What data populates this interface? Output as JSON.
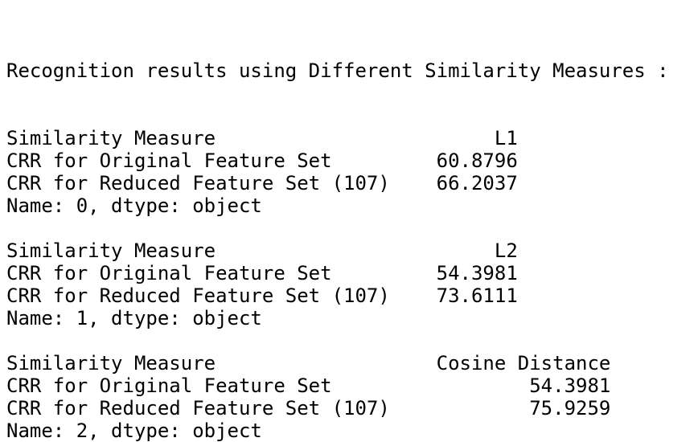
{
  "title": "Recognition results using Different Similarity Measures :",
  "blocks": [
    {
      "rows": [
        {
          "label": "Similarity Measure",
          "value": "L1"
        },
        {
          "label": "CRR for Original Feature Set",
          "value": 60.8796
        },
        {
          "label": "CRR for Reduced Feature Set (107)",
          "value": 66.2037
        }
      ],
      "footer": "Name: 0, dtype: object"
    },
    {
      "rows": [
        {
          "label": "Similarity Measure",
          "value": "L2"
        },
        {
          "label": "CRR for Original Feature Set",
          "value": 54.3981
        },
        {
          "label": "CRR for Reduced Feature Set (107)",
          "value": 73.6111
        }
      ],
      "footer": "Name: 1, dtype: object"
    },
    {
      "rows": [
        {
          "label": "Similarity Measure",
          "value": "Cosine Distance"
        },
        {
          "label": "CRR for Original Feature Set",
          "value": 54.3981
        },
        {
          "label": "CRR for Reduced Feature Set (107)",
          "value": 75.9259
        }
      ],
      "footer": "Name: 2, dtype: object"
    }
  ]
}
